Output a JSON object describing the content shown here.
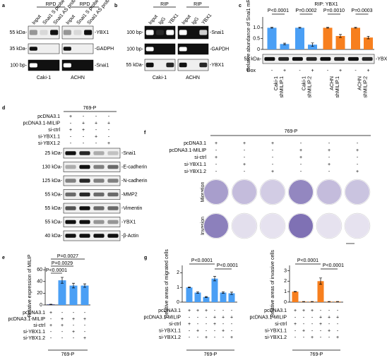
{
  "a": {
    "letter": "a",
    "groups": [
      "RPD",
      "RPD"
    ],
    "lanes": [
      "Input",
      "Snai1 S probe",
      "Snai1 AS probe",
      "Input",
      "Snai1 S probe",
      "Snai1 AS probe"
    ],
    "markers": [
      "55 kDa-",
      "35 kDa-",
      "100 bp-"
    ],
    "targets": [
      "-YBX1",
      "-GADPH",
      "-Snai1"
    ],
    "cells": [
      "Caki-1",
      "ACHN"
    ]
  },
  "b": {
    "letter": "b",
    "groups": [
      "RIP",
      "RIP"
    ],
    "lanes": [
      "Input",
      "IgG",
      "YBX1",
      "Input",
      "IgG",
      "YBX1"
    ],
    "markers": [
      "100 bp-",
      "100 bp-",
      "55 kDa-"
    ],
    "targets": [
      "-Snai1",
      "-GAPDH",
      "-YBX1"
    ],
    "cells": [
      "Caki-1",
      "ACHN"
    ]
  },
  "c": {
    "letter": "c",
    "title": "RIP: YBX1",
    "ylabel": "Relative abundance of Snai1 mRNA",
    "ylim": [
      0,
      1.5
    ],
    "yticks": [
      0,
      0.5,
      {
        "value": 1,
        "label": "1.0"
      }
    ],
    "groups": [
      {
        "label": [
          "Caki-1",
          "shMILIP.1"
        ],
        "color": "#4a9ff5",
        "values": [
          1,
          0.25
        ],
        "errors": [
          0.02,
          0.04
        ],
        "p": "P<0.0001"
      },
      {
        "label": [
          "Caki-1",
          "shMILIP.2"
        ],
        "color": "#4a9ff5",
        "values": [
          1,
          0.22
        ],
        "errors": [
          0.02,
          0.08
        ],
        "p": "P=0.0002"
      },
      {
        "label": [
          "ACHN",
          "shMILIP.1"
        ],
        "color": "#f77f1e",
        "values": [
          1,
          0.62
        ],
        "errors": [
          0.02,
          0.07
        ],
        "p": "P=0.0010"
      },
      {
        "label": [
          "ACHN",
          "shMILIP.2"
        ],
        "color": "#f77f1e",
        "values": [
          1,
          0.55
        ],
        "errors": [
          0.02,
          0.06
        ],
        "p": "P=0.0003"
      }
    ],
    "dox_label": "Dox",
    "dox": [
      "-",
      "+",
      "-",
      "+",
      "-",
      "+",
      "-",
      "+"
    ],
    "blot": {
      "marker": "55 kDa-",
      "target": "-YBX1"
    }
  },
  "d": {
    "letter": "d",
    "cell": "769-P",
    "rows": [
      {
        "label": "pcDNA3.1",
        "signs": [
          "+",
          "-",
          "-",
          "-"
        ]
      },
      {
        "label": "pcDNA3.1-MILIP",
        "signs": [
          "-",
          "+",
          "+",
          "+"
        ]
      },
      {
        "label": "si-ctrl",
        "signs": [
          "+",
          "+",
          "-",
          "-"
        ]
      },
      {
        "label": "si-YBX1.1",
        "signs": [
          "-",
          "-",
          "+",
          "-"
        ]
      },
      {
        "label": "si-YBX1.2",
        "signs": [
          "-",
          "-",
          "-",
          "+"
        ]
      }
    ],
    "markers": [
      "25 kDa-",
      "130 kDa-",
      "125 kDa-",
      "55 kDa-",
      "55 kDa-",
      "55 kDa-",
      "40 kDa-"
    ],
    "targets": [
      "-Snai1",
      "-E-cadherin",
      "-N-cadherin",
      "-MMP2",
      "-Vimentin",
      "-YBX1",
      "-β-Actin"
    ]
  },
  "e": {
    "letter": "e",
    "ylabel": "Relative expression of MILIP",
    "ylim": [
      0,
      65
    ],
    "yticks": [
      0,
      20,
      40,
      60
    ],
    "values": [
      1,
      42,
      33,
      33
    ],
    "errors": [
      0.3,
      5,
      4,
      3
    ],
    "colors": [
      "#2f3b80",
      "#4a9ff5",
      "#4a9ff5",
      "#4a9ff5"
    ],
    "pvalues": [
      "P=0.0027",
      "P=0.0029",
      "P<0.0001"
    ],
    "rows": [
      {
        "label": "pcDNA3.1",
        "signs": [
          "+",
          "-",
          "-",
          "-"
        ]
      },
      {
        "label": "pcDNA3.1-MILIP",
        "signs": [
          "-",
          "+",
          "+",
          "+"
        ]
      },
      {
        "label": "si-ctrl",
        "signs": [
          "+",
          "+",
          "-",
          "-"
        ]
      },
      {
        "label": "si-YBX1.1",
        "signs": [
          "-",
          "-",
          "+",
          "-"
        ]
      },
      {
        "label": "si-YBX1.2",
        "signs": [
          "-",
          "-",
          "-",
          "+"
        ]
      }
    ],
    "footer": "769-P"
  },
  "f": {
    "letter": "f",
    "cell": "769-P",
    "rows": [
      {
        "label": "pcDNA3.1",
        "signs": [
          "+",
          "+",
          "+",
          "-",
          "-",
          "-"
        ]
      },
      {
        "label": "pcDNA3.1-MILIP",
        "signs": [
          "-",
          "-",
          "-",
          "+",
          "+",
          "+"
        ]
      },
      {
        "label": "si-ctrl",
        "signs": [
          "+",
          "-",
          "-",
          "+",
          "-",
          "-"
        ]
      },
      {
        "label": "si-YBX1.1",
        "signs": [
          "-",
          "+",
          "-",
          "-",
          "+",
          "-"
        ]
      },
      {
        "label": "si-YBX1.2",
        "signs": [
          "-",
          "-",
          "+",
          "-",
          "-",
          "+"
        ]
      }
    ],
    "assays": [
      "Migration",
      "Invasion"
    ]
  },
  "g": {
    "letter": "g",
    "charts": [
      {
        "ylabel": "Relative areas of migrated cells",
        "ylim": [
          0,
          2.5
        ],
        "yticks": [
          0,
          1,
          2
        ],
        "values": [
          1,
          0.65,
          0.35,
          1.6,
          0.65,
          0.6
        ],
        "errors": [
          0.02,
          0.05,
          0.03,
          0.15,
          0.05,
          0.08
        ],
        "color": "#4a9ff5",
        "pvalues": [
          "P<0.0001",
          "P<0.0001"
        ],
        "footer": "769-P"
      },
      {
        "ylabel": "Relative areas of invasive cells",
        "ylim": [
          0,
          3.5
        ],
        "yticks": [
          0,
          1,
          2,
          3
        ],
        "values": [
          1,
          0.05,
          0.05,
          2,
          0.05,
          0.05
        ],
        "errors": [
          0.02,
          0.01,
          0.01,
          0.3,
          0.01,
          0.01
        ],
        "color": "#f77f1e",
        "pvalues": [
          "P<0.0001",
          "P<0.0001"
        ],
        "footer": "769-P"
      }
    ],
    "rows": [
      {
        "label": "pcDNA3.1",
        "signs": [
          "+",
          "+",
          "+",
          "-",
          "-",
          "-"
        ]
      },
      {
        "label": "pcDNA3.1-MILIP",
        "signs": [
          "-",
          "-",
          "-",
          "+",
          "+",
          "+"
        ]
      },
      {
        "label": "si-ctrl",
        "signs": [
          "+",
          "-",
          "-",
          "+",
          "-",
          "-"
        ]
      },
      {
        "label": "si-YBX1.1",
        "signs": [
          "-",
          "+",
          "-",
          "-",
          "+",
          "-"
        ]
      },
      {
        "label": "si-YBX1.2",
        "signs": [
          "-",
          "-",
          "+",
          "-",
          "-",
          "+"
        ]
      }
    ]
  }
}
